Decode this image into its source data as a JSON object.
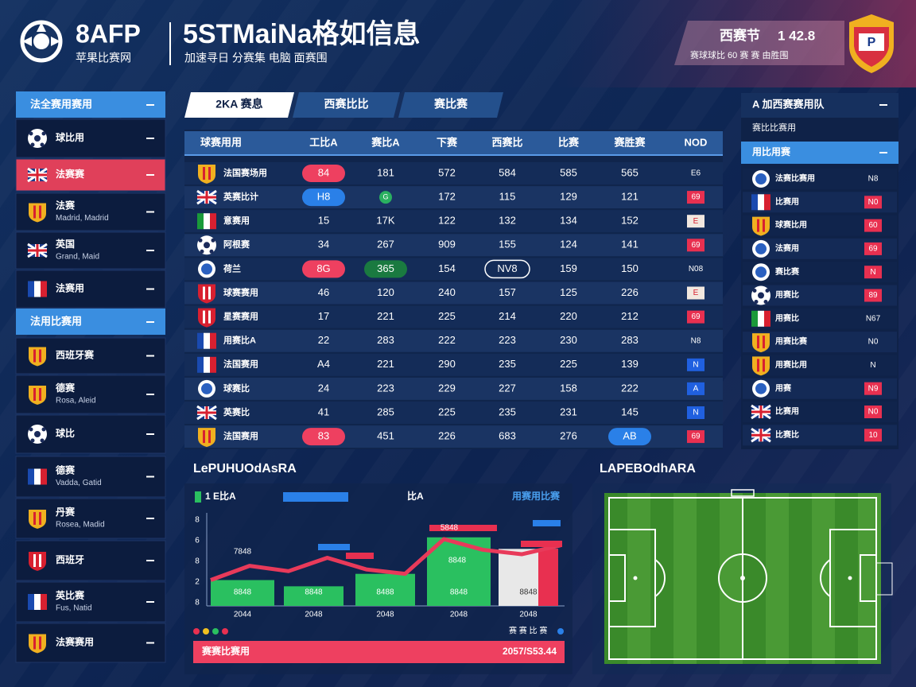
{
  "header": {
    "logo": "8AFP",
    "logo_sub": "苹果比赛网",
    "title": "5STMaiNa格如信息",
    "subtitle": "加速寻日 分赛集   电脑   面赛围",
    "score_label": "西赛节",
    "score": "1 42.8",
    "score_sub": "赛球球比   60  赛  赛  由胜围"
  },
  "left_sidebar": {
    "sections": [
      {
        "title": "法全赛用赛用",
        "items": [
          {
            "name": "球比用"
          },
          {
            "name": "法赛赛"
          },
          {
            "name": "法赛",
            "sub": "Madrid, Madrid"
          },
          {
            "name": "英国",
            "sub": "Grand, Maid"
          },
          {
            "name": "法赛用"
          }
        ]
      },
      {
        "title": "法用比赛用",
        "items": [
          {
            "name": "西班牙赛"
          },
          {
            "name": "德赛",
            "sub": "Rosa, Aleid"
          },
          {
            "name": "球比"
          },
          {
            "name": "德赛",
            "sub": "Vadda, Gatid"
          },
          {
            "name": "丹赛",
            "sub": "Rosea, Madid"
          },
          {
            "name": "西班牙"
          },
          {
            "name": "英比赛",
            "sub": "Fus, Natid"
          },
          {
            "name": "法赛赛用"
          }
        ]
      }
    ]
  },
  "tabs": [
    "2KA 赛息",
    "西赛比比",
    "赛比赛"
  ],
  "table": {
    "headers": [
      "球赛用用",
      "工比A",
      "赛比A",
      "下赛",
      "西赛比",
      "比赛",
      "赛胜赛",
      "NOD"
    ],
    "rows": [
      {
        "team": "法国赛场用",
        "cells": [
          "84",
          "181",
          "572",
          "584",
          "585",
          "565",
          "E6"
        ]
      },
      {
        "team": "英赛比计",
        "cells": [
          "H8",
          "G",
          "172",
          "115",
          "129",
          "121",
          "69"
        ]
      },
      {
        "team": "意赛用",
        "cells": [
          "15",
          "17K",
          "122",
          "132",
          "134",
          "152",
          "E"
        ]
      },
      {
        "team": "阿根赛",
        "cells": [
          "34",
          "267",
          "909",
          "155",
          "124",
          "141",
          "69"
        ]
      },
      {
        "team": "荷兰",
        "cells": [
          "8G",
          "365",
          "154",
          "NV8",
          "159",
          "150",
          "N08"
        ]
      },
      {
        "team": "球赛赛用",
        "cells": [
          "46",
          "120",
          "240",
          "157",
          "125",
          "226",
          "E"
        ]
      },
      {
        "team": "星赛赛用",
        "cells": [
          "17",
          "221",
          "225",
          "214",
          "220",
          "212",
          "69"
        ]
      },
      {
        "team": "用赛比A",
        "cells": [
          "22",
          "283",
          "222",
          "223",
          "230",
          "283",
          "N8"
        ]
      },
      {
        "team": "法国赛用",
        "cells": [
          "A4",
          "221",
          "290",
          "235",
          "225",
          "139",
          "N"
        ]
      },
      {
        "team": "球赛比",
        "cells": [
          "24",
          "223",
          "229",
          "227",
          "158",
          "222",
          "A"
        ]
      },
      {
        "team": "英赛比",
        "cells": [
          "41",
          "285",
          "225",
          "235",
          "231",
          "145",
          "N"
        ]
      },
      {
        "team": "法国赛用",
        "cells": [
          "83",
          "451",
          "226",
          "683",
          "276",
          "AB",
          "69"
        ]
      }
    ]
  },
  "right_sidebar": {
    "title": "A 加西赛赛用队",
    "sub": "赛比比赛用",
    "section": "用比用赛",
    "rows": [
      {
        "name": "法赛比赛用",
        "value": "N8"
      },
      {
        "name": "比赛用",
        "value": "N0"
      },
      {
        "name": "球赛比用",
        "value": "60"
      },
      {
        "name": "法赛用",
        "value": "69"
      },
      {
        "name": "赛比赛",
        "value": "N"
      },
      {
        "name": "用赛比",
        "value": "89"
      },
      {
        "name": "用赛比",
        "value": "N67"
      },
      {
        "name": "用赛比赛",
        "value": "N0"
      },
      {
        "name": "用赛比用",
        "value": "N"
      },
      {
        "name": "用赛",
        "value": "N9"
      },
      {
        "name": "比赛用",
        "value": "N0"
      },
      {
        "name": "比赛比",
        "value": "10"
      }
    ]
  },
  "chart": {
    "title": "LePUHUOdAsRA",
    "legend": [
      "1 E比A",
      "比A"
    ],
    "tag": "用赛用比赛",
    "axis_labels": [
      "8",
      "6",
      "8",
      "2",
      "8"
    ],
    "ylim": [
      0,
      100
    ],
    "bar_values": [
      29,
      22,
      36,
      77,
      64
    ],
    "bar_labels": [
      "8848",
      "8848",
      "8488",
      "8848",
      "8848"
    ],
    "line_values": [
      29,
      45,
      39,
      54,
      41,
      36,
      75,
      63,
      58,
      68
    ],
    "annotations": [
      "7848",
      "5848",
      "8848"
    ],
    "x_labels": [
      "2044",
      "2048",
      "2048",
      "2048",
      "2048"
    ],
    "legend_right": "赛 赛 比 赛",
    "footer_label": "赛赛比赛用",
    "footer_value": "2057/S53.44"
  },
  "pitch": {
    "title": "LAPEBOdhARA"
  }
}
